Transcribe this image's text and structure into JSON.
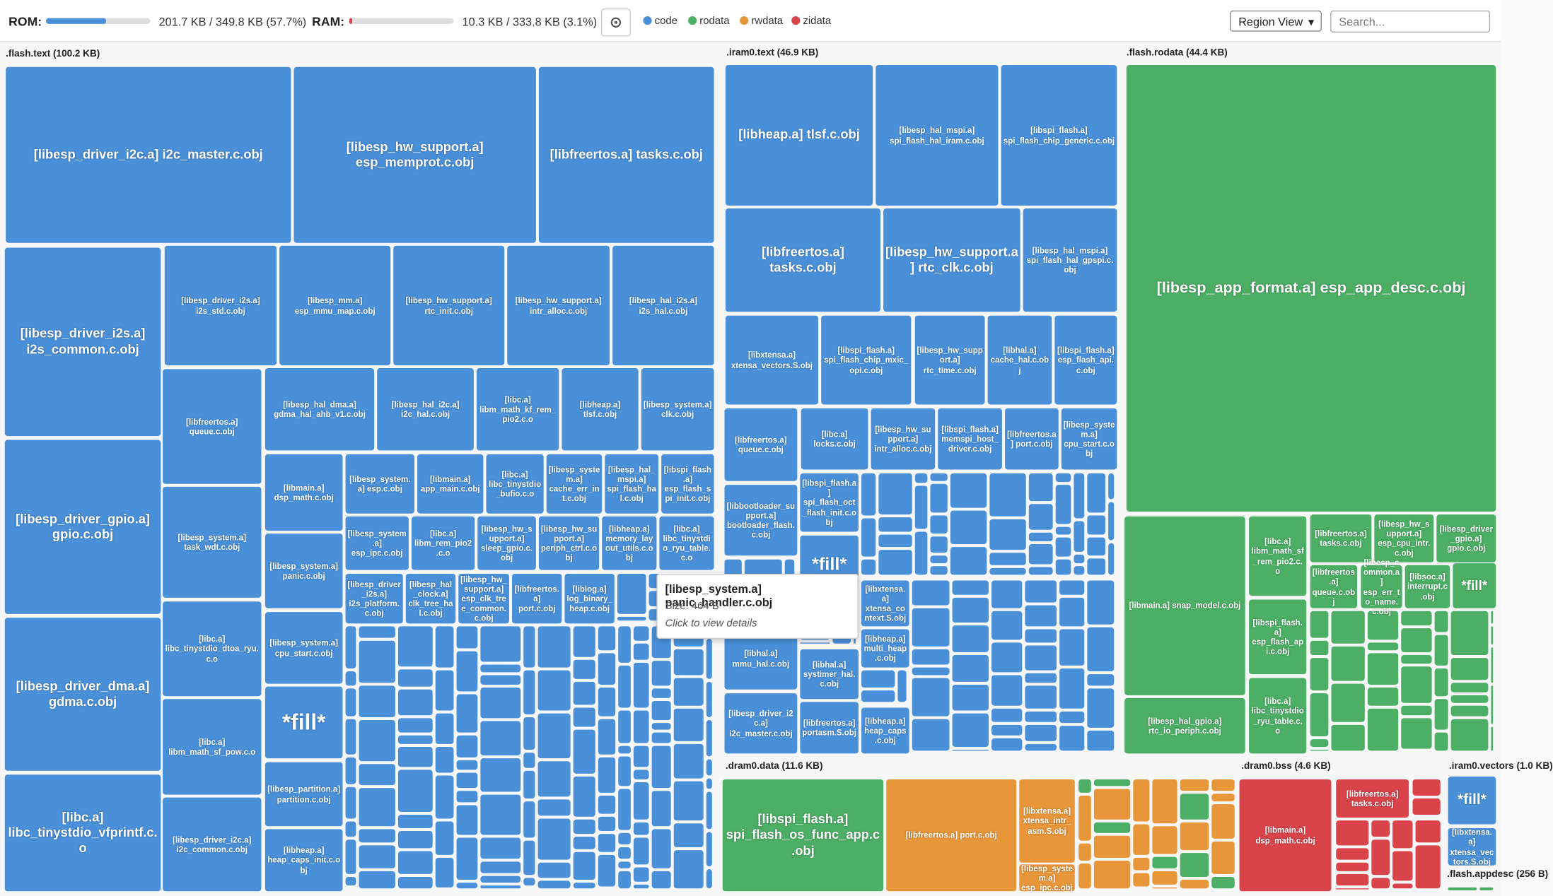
{
  "header": {
    "rom_label": "ROM:",
    "rom_usage": "201.7 KB / 349.8 KB (57.7%)",
    "rom_percent": 57.7,
    "ram_label": "RAM:",
    "ram_usage": "10.3 KB / 333.8 KB (3.1%)",
    "ram_percent": 3.1,
    "legend": [
      {
        "name": "code",
        "color": "#4a90d9"
      },
      {
        "name": "rodata",
        "color": "#4caf65"
      },
      {
        "name": "rwdata",
        "color": "#e8963a"
      },
      {
        "name": "zidata",
        "color": "#d9434a"
      }
    ],
    "view_select": "Region View",
    "search_placeholder": "Search..."
  },
  "sections": [
    {
      "title": ".flash.text (100.2 KB)",
      "cells": [
        {
          "label": "[libesp_driver_i2c.a] i2c_master.c.obj",
          "type": "code"
        },
        {
          "label": "[libesp_hw_support.a] esp_memprot.c.obj",
          "type": "code"
        },
        {
          "label": "[libfreertos.a] tasks.c.obj",
          "type": "code"
        },
        {
          "label": "[libesp_driver_i2s.a] i2s_common.c.obj",
          "type": "code"
        },
        {
          "label": "[libesp_driver_gpio.a] gpio.c.obj",
          "type": "code"
        },
        {
          "label": "[libesp_driver_dma.a] gdma.c.obj",
          "type": "code"
        },
        {
          "label": "[libc.a] libc_tinystdio_vfprintf.c.o",
          "type": "code"
        },
        {
          "label": "[libesp_driver_i2s.a] i2s_std.c.obj",
          "type": "code"
        },
        {
          "label": "[libesp_mm.a] esp_mmu_map.c.obj",
          "type": "code"
        },
        {
          "label": "[libesp_hw_support.a] rtc_init.c.obj",
          "type": "code"
        },
        {
          "label": "[libesp_hw_support.a] intr_alloc.c.obj",
          "type": "code"
        },
        {
          "label": "[libesp_hal_i2s.a] i2s_hal.c.obj",
          "type": "code"
        },
        {
          "label": "[libfreertos.a] queue.c.obj",
          "type": "code"
        },
        {
          "label": "[libesp_system.a] task_wdt.c.obj",
          "type": "code"
        },
        {
          "label": "[libc.a] libc_tinystdio_dtoa_ryu.c.o",
          "type": "code"
        },
        {
          "label": "[libc.a] libm_math_sf_pow.c.o",
          "type": "code"
        },
        {
          "label": "[libesp_driver_i2c.a] i2c_common.c.obj",
          "type": "code"
        },
        {
          "label": "[libesp_hal_dma.a] gdma_hal_ahb_v1.c.obj",
          "type": "code"
        },
        {
          "label": "[libesp_hal_i2c.a] i2c_hal.c.obj",
          "type": "code"
        },
        {
          "label": "[libc.a] libm_math_kf_rem_pio2.c.o",
          "type": "code"
        },
        {
          "label": "[libheap.a] tlsf.c.obj",
          "type": "code"
        },
        {
          "label": "[libesp_system.a] clk.c.obj",
          "type": "code"
        },
        {
          "label": "[libmain.a] dsp_math.c.obj",
          "type": "code"
        },
        {
          "label": "[libesp_system.a] panic.c.obj",
          "type": "code"
        },
        {
          "label": "[libesp_system.a] cpu_start.c.obj",
          "type": "code"
        },
        {
          "label": "*fill*",
          "type": "code"
        },
        {
          "label": "[libesp_partition.a] partition.c.obj",
          "type": "code"
        },
        {
          "label": "[libheap.a] heap_caps_init.c.obj",
          "type": "code"
        },
        {
          "label": "[libesp_system.a] esp.c.obj",
          "type": "code"
        },
        {
          "label": "[libmain.a] app_main.c.obj",
          "type": "code"
        },
        {
          "label": "[libc.a] libc_tinystdio_bufio.c.o",
          "type": "code"
        },
        {
          "label": "[libesp_system.a] cache_err_int.c.obj",
          "type": "code"
        },
        {
          "label": "[libesp_hal_mspi.a] spi_flash_hal.c.obj",
          "type": "code"
        },
        {
          "label": "[libspi_flash.a] esp_flash_spi_init.c.obj",
          "type": "code"
        },
        {
          "label": "[libesp_system.a] esp_ipc.c.obj",
          "type": "code"
        },
        {
          "label": "[libc.a] libm_rem_pio2.c.o",
          "type": "code"
        },
        {
          "label": "[libesp_hw_support.a] sleep_gpio.c.obj",
          "type": "code"
        },
        {
          "label": "[libesp_hw_support.a] periph_ctrl.c.obj",
          "type": "code"
        },
        {
          "label": "[libheap.a] memory_layout_utils.c.obj",
          "type": "code"
        },
        {
          "label": "[libc.a] libc_tinystdio_ryu_table.c.o",
          "type": "code"
        },
        {
          "label": "[libesp_driver_i2s.a] i2s_platform.c.obj",
          "type": "code"
        },
        {
          "label": "[libesp_hal_clock.a] clk_tree_hal.c.obj",
          "type": "code"
        },
        {
          "label": "[libesp_hw_support.a] esp_clk_tree_common.c.obj",
          "type": "code"
        },
        {
          "label": "[libfreertos.a] port.c.obj",
          "type": "code"
        },
        {
          "label": "[liblog.a] log_binary_heap.c.obj",
          "type": "code"
        }
      ]
    },
    {
      "title": ".iram0.text (46.9 KB)",
      "cells": [
        {
          "label": "[libheap.a] tlsf.c.obj",
          "type": "code"
        },
        {
          "label": "[libesp_hal_mspi.a] spi_flash_hal_iram.c.obj",
          "type": "code"
        },
        {
          "label": "[libspi_flash.a] spi_flash_chip_generic.c.obj",
          "type": "code"
        },
        {
          "label": "[libfreertos.a] tasks.c.obj",
          "type": "code"
        },
        {
          "label": "[libesp_hw_support.a] rtc_clk.c.obj",
          "type": "code"
        },
        {
          "label": "[libesp_hal_mspi.a] spi_flash_hal_gpspi.c.obj",
          "type": "code"
        },
        {
          "label": "[libxtensa.a] xtensa_vectors.S.obj",
          "type": "code"
        },
        {
          "label": "[libspi_flash.a] spi_flash_chip_mxic_opi.c.obj",
          "type": "code"
        },
        {
          "label": "[libesp_hw_support.a] rtc_time.c.obj",
          "type": "code"
        },
        {
          "label": "[libhal.a] cache_hal.c.obj",
          "type": "code"
        },
        {
          "label": "[libspi_flash.a] esp_flash_api.c.obj",
          "type": "code"
        },
        {
          "label": "[libfreertos.a] queue.c.obj",
          "type": "code"
        },
        {
          "label": "[libc.a] locks.c.obj",
          "type": "code"
        },
        {
          "label": "[libesp_hw_support.a] intr_alloc.c.obj",
          "type": "code"
        },
        {
          "label": "[libspi_flash.a] memspi_host_driver.c.obj",
          "type": "code"
        },
        {
          "label": "[libfreertos.a] port.c.obj",
          "type": "code"
        },
        {
          "label": "[libesp_system.a] cpu_start.c.obj",
          "type": "code"
        },
        {
          "label": "[libbootloader_support.a] bootloader_flash.c.obj",
          "type": "code"
        },
        {
          "label": "*fill*",
          "type": "code"
        },
        {
          "label": "[libhal.a] mmu_hal.c.obj",
          "type": "code"
        },
        {
          "label": "[libesp_driver_i2c.a] i2c_master.c.obj",
          "type": "code"
        },
        {
          "label": "[libhal.a] systimer_hal.c.obj",
          "type": "code"
        },
        {
          "label": "[libfreertos.a] portasm.S.obj",
          "type": "code"
        },
        {
          "label": "[libxtensa.a] xtensa_context.S.obj",
          "type": "code"
        },
        {
          "label": "[libheap.a] multi_heap.c.obj",
          "type": "code"
        },
        {
          "label": "[libheap.a] heap_caps.c.obj",
          "type": "code"
        },
        {
          "label": "[libspi_flash.a] spi_flash_oct_flash_init.c.obj",
          "type": "code"
        }
      ]
    },
    {
      "title": ".flash.rodata (44.4 KB)",
      "cells": [
        {
          "label": "[libesp_app_format.a] esp_app_desc.c.obj",
          "type": "rodata"
        },
        {
          "label": "[libmain.a] snap_model.c.obj",
          "type": "rodata"
        },
        {
          "label": "[libesp_hal_gpio.a] rtc_io_periph.c.obj",
          "type": "rodata"
        },
        {
          "label": "[libc.a] libm_math_sf_rem_pio2.c.o",
          "type": "rodata"
        },
        {
          "label": "[libspi_flash.a] esp_flash_api.c.obj",
          "type": "rodata"
        },
        {
          "label": "[libc.a] libc_tinystdio_ryu_table.c.o",
          "type": "rodata"
        },
        {
          "label": "[libfreertos.a] tasks.c.obj",
          "type": "rodata"
        },
        {
          "label": "[libesp_hw_support.a] esp_cpu_intr.c.obj",
          "type": "rodata"
        },
        {
          "label": "[libesp_driver_gpio.a] gpio.c.obj",
          "type": "rodata"
        },
        {
          "label": "[libfreertos.a] queue.c.obj",
          "type": "rodata"
        },
        {
          "label": "[libesp_common.a] esp_err_to_name.c.obj",
          "type": "rodata"
        },
        {
          "label": "[libsoc.a] interrupt.c.obj",
          "type": "rodata"
        },
        {
          "label": "*fill*",
          "type": "rodata"
        }
      ]
    },
    {
      "title": ".dram0.data (11.6 KB)",
      "cells": [
        {
          "label": "[libspi_flash.a] spi_flash_os_func_app.c.obj",
          "type": "rodata"
        },
        {
          "label": "[libfreertos.a] port.c.obj",
          "type": "rwdata"
        },
        {
          "label": "[libxtensa.a] xtensa_intr_asm.S.obj",
          "type": "rwdata"
        },
        {
          "label": "[libesp_system.a] esp_ipc.c.obj",
          "type": "rwdata"
        }
      ]
    },
    {
      "title": ".dram0.bss (4.6 KB)",
      "cells": [
        {
          "label": "[libmain.a] dsp_math.c.obj",
          "type": "zidata"
        },
        {
          "label": "[libfreertos.a] tasks.c.obj",
          "type": "zidata"
        }
      ]
    },
    {
      "title": ".iram0.vectors (1.0 KB)",
      "cells": [
        {
          "label": "*fill*",
          "type": "code"
        },
        {
          "label": "[libxtensa.a] xtensa_vectors.S.obj",
          "type": "code"
        }
      ]
    },
    {
      "title": ".flash.appdesc (256 B)",
      "cells": []
    }
  ],
  "tooltip": {
    "title": "[libesp_system.a] panic_handler.c.obj",
    "size": "Size: 464 B",
    "hint": "Click to view details"
  }
}
